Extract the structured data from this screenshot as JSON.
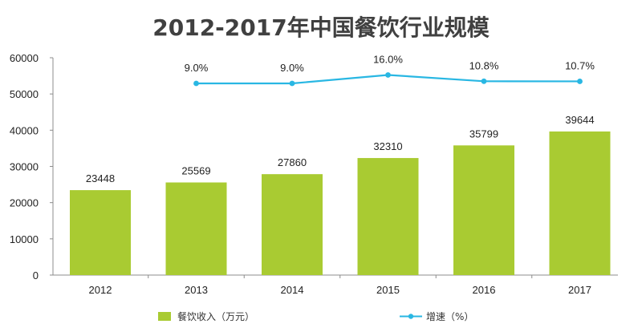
{
  "chart_data": {
    "type": "bar",
    "title": "2012-2017年中国餐饮行业规模",
    "categories": [
      "2012",
      "2013",
      "2014",
      "2015",
      "2016",
      "2017"
    ],
    "ylim": [
      0,
      60000
    ],
    "yticks": [
      "0",
      "10000",
      "20000",
      "30000",
      "40000",
      "50000",
      "60000"
    ],
    "grid": false,
    "legend_position": "bottom",
    "series": [
      {
        "name": "餐饮收入（万元）",
        "kind": "bar",
        "color": "#a9cb32",
        "values": [
          23448,
          25569,
          27860,
          32310,
          35799,
          39644
        ],
        "labels": [
          "23448",
          "25569",
          "27860",
          "32310",
          "35799",
          "39644"
        ]
      },
      {
        "name": "增速（%）",
        "kind": "line",
        "color": "#29b7e3",
        "values": [
          null,
          9.0,
          9.0,
          16.0,
          10.8,
          10.7
        ],
        "labels": [
          "",
          "9.0%",
          "9.0%",
          "16.0%",
          "10.8%",
          "10.7%"
        ]
      }
    ]
  }
}
